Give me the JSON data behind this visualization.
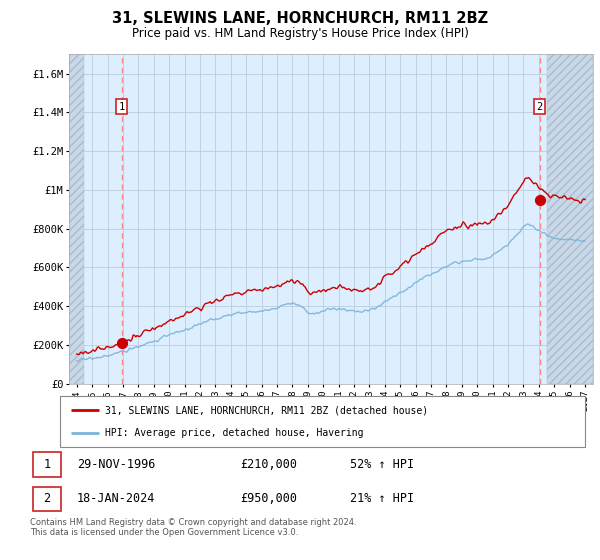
{
  "title1": "31, SLEWINS LANE, HORNCHURCH, RM11 2BZ",
  "title2": "Price paid vs. HM Land Registry's House Price Index (HPI)",
  "ylim": [
    0,
    1700000
  ],
  "yticks": [
    0,
    200000,
    400000,
    600000,
    800000,
    1000000,
    1200000,
    1400000,
    1600000
  ],
  "ytick_labels": [
    "£0",
    "£200K",
    "£400K",
    "£600K",
    "£800K",
    "£1M",
    "£1.2M",
    "£1.4M",
    "£1.6M"
  ],
  "sale1_date": 1996.92,
  "sale1_price": 210000,
  "sale2_date": 2024.05,
  "sale2_price": 950000,
  "hpi_color": "#7ab4d8",
  "price_color": "#cc0000",
  "dashed_color": "#ff8888",
  "bg_color": "#ddeeff",
  "hatch_color": "#c8d8e8",
  "grid_color": "#bbccdd",
  "legend_entry1": "31, SLEWINS LANE, HORNCHURCH, RM11 2BZ (detached house)",
  "legend_entry2": "HPI: Average price, detached house, Havering",
  "table_rows": [
    {
      "num": "1",
      "date": "29-NOV-1996",
      "price": "£210,000",
      "hpi": "52% ↑ HPI"
    },
    {
      "num": "2",
      "date": "18-JAN-2024",
      "price": "£950,000",
      "hpi": "21% ↑ HPI"
    }
  ],
  "footer": "Contains HM Land Registry data © Crown copyright and database right 2024.\nThis data is licensed under the Open Government Licence v3.0.",
  "xmin": 1993.5,
  "xmax": 2027.5,
  "xticks": [
    1994,
    1995,
    1996,
    1997,
    1998,
    1999,
    2000,
    2001,
    2002,
    2003,
    2004,
    2005,
    2006,
    2007,
    2008,
    2009,
    2010,
    2011,
    2012,
    2013,
    2014,
    2015,
    2016,
    2017,
    2018,
    2019,
    2020,
    2021,
    2022,
    2023,
    2024,
    2025,
    2026,
    2027
  ]
}
